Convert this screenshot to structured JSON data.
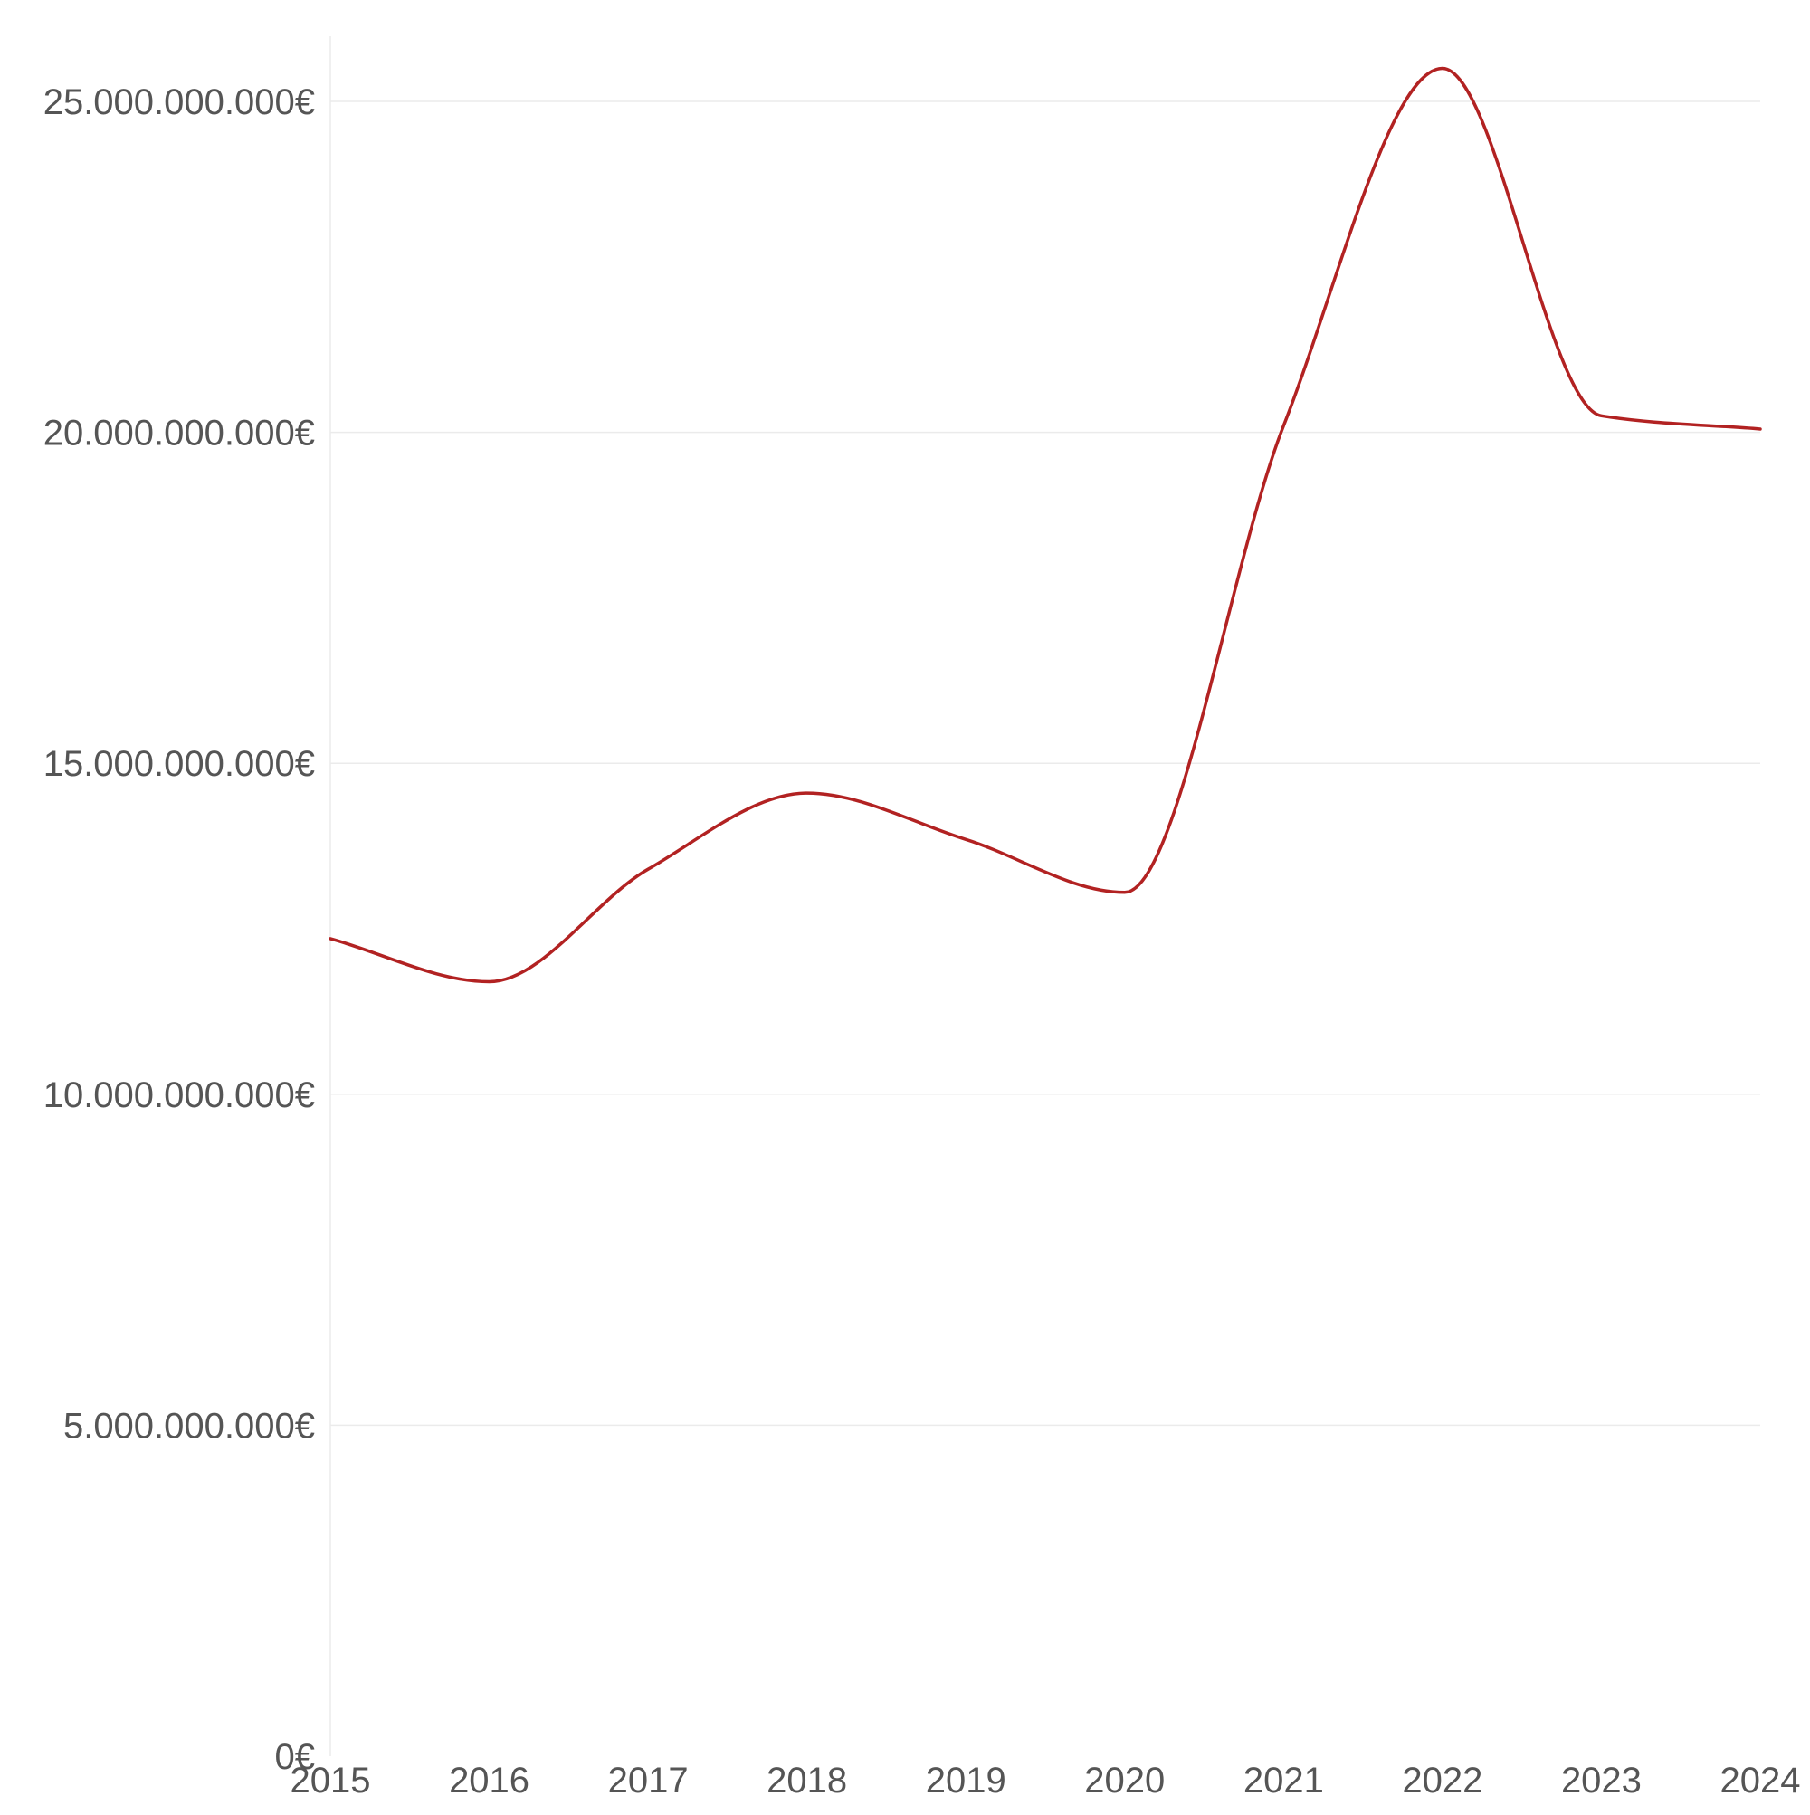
{
  "chart_data": {
    "type": "line",
    "title": "",
    "xlabel": "",
    "ylabel": "",
    "categories": [
      "2015",
      "2016",
      "2017",
      "2018",
      "2019",
      "2020",
      "2021",
      "2022",
      "2023",
      "2024"
    ],
    "series": [
      {
        "values": [
          12350000000,
          11700000000,
          13400000000,
          14550000000,
          13850000000,
          13050000000,
          20100000000,
          25500000000,
          20250000000,
          20050000000
        ],
        "color": "#b22222"
      }
    ],
    "ylim": [
      0,
      26000000000
    ],
    "y_ticks": [
      0,
      5000000000,
      10000000000,
      15000000000,
      20000000000,
      25000000000
    ],
    "y_tick_labels": [
      "0€",
      "5.000.000.000€",
      "10.000.000.000€",
      "15.000.000.000€",
      "20.000.000.000€",
      "25.000.000.000€"
    ],
    "grid": true,
    "legend": "none",
    "colors": {
      "line": "#b22222",
      "grid": "#ebebeb",
      "axis_text": "#555555"
    }
  }
}
